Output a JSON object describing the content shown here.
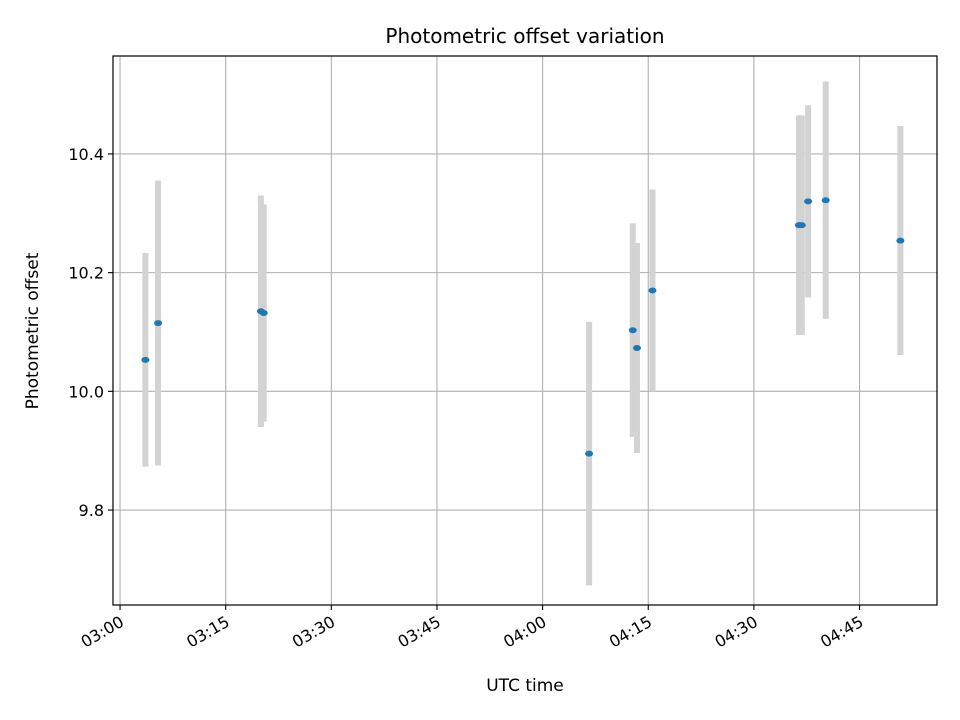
{
  "chart_data": {
    "type": "scatter",
    "title": "Photometric offset variation",
    "xlabel": "UTC time",
    "ylabel": "Photometric offset",
    "x_axis": {
      "kind": "time",
      "range": [
        "02:59",
        "04:56"
      ],
      "ticks": [
        "03:00",
        "03:15",
        "03:30",
        "03:45",
        "04:00",
        "04:15",
        "04:30",
        "04:45"
      ]
    },
    "y_axis": {
      "range": [
        9.64,
        10.565
      ],
      "ticks": [
        9.8,
        10.0,
        10.2,
        10.4
      ],
      "tick_labels": [
        "9.8",
        "10.0",
        "10.2",
        "10.4"
      ]
    },
    "grid": true,
    "colors": {
      "point": "#1f77b4",
      "errorbar": "#d3d3d3",
      "grid": "#b0b0b0"
    },
    "points": [
      {
        "time": "03:03:36",
        "y": 10.053,
        "err": 0.18
      },
      {
        "time": "03:05:24",
        "y": 10.115,
        "err": 0.24
      },
      {
        "time": "03:20:00",
        "y": 10.135,
        "err": 0.195
      },
      {
        "time": "03:20:24",
        "y": 10.132,
        "err": 0.183
      },
      {
        "time": "04:06:36",
        "y": 9.895,
        "err": 0.222
      },
      {
        "time": "04:12:48",
        "y": 10.103,
        "err": 0.18
      },
      {
        "time": "04:13:24",
        "y": 10.073,
        "err": 0.177
      },
      {
        "time": "04:15:36",
        "y": 10.17,
        "err": 0.17
      },
      {
        "time": "04:36:24",
        "y": 10.28,
        "err": 0.185
      },
      {
        "time": "04:36:48",
        "y": 10.28,
        "err": 0.185
      },
      {
        "time": "04:37:42",
        "y": 10.32,
        "err": 0.162
      },
      {
        "time": "04:40:12",
        "y": 10.322,
        "err": 0.2
      },
      {
        "time": "04:50:48",
        "y": 10.254,
        "err": 0.193
      }
    ]
  }
}
